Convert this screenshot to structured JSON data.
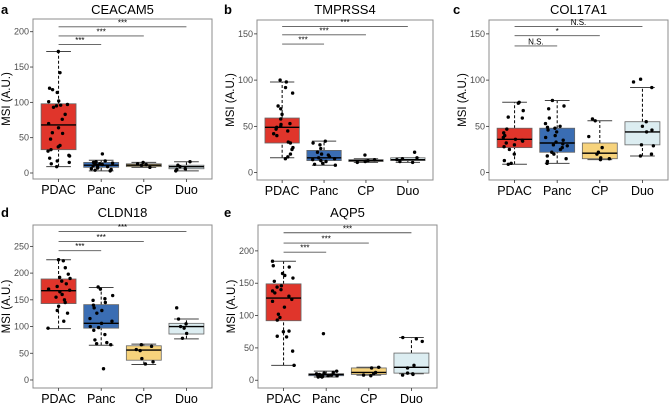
{
  "chart_data": [
    {
      "letter": "a",
      "type": "box",
      "title": "CEACAM5",
      "ylabel": "MSI (A.U.)",
      "categories": [
        "PDAC",
        "Panc",
        "CP",
        "Duo"
      ],
      "ylim": [
        -8.5,
        218
      ],
      "yticks": [
        0,
        50,
        100,
        150,
        200
      ],
      "boxes": [
        {
          "whisker_low": 9,
          "q1": 33,
          "median": 68,
          "q3": 98,
          "whisker_high": 172
        },
        {
          "whisker_low": 3,
          "q1": 8,
          "median": 11,
          "q3": 15,
          "whisker_high": 18
        },
        {
          "whisker_low": 8,
          "q1": 9,
          "median": 11,
          "q3": 13,
          "whisker_high": 15
        },
        {
          "whisker_low": 3,
          "q1": 6,
          "median": 9,
          "q3": 11,
          "whisker_high": 16
        }
      ],
      "points": [
        [
          172,
          142,
          120,
          118,
          114,
          102,
          101,
          97,
          96,
          95,
          93,
          83,
          76,
          70,
          64,
          57,
          56,
          48,
          39,
          37,
          33,
          31,
          25,
          24,
          21,
          17,
          15,
          13,
          9
        ],
        [
          27,
          17,
          16,
          15,
          14,
          13,
          13,
          12,
          11,
          10,
          9,
          8,
          7,
          6,
          5,
          4,
          3
        ],
        [
          15,
          13,
          12,
          11,
          8
        ],
        [
          16,
          11,
          9,
          6,
          5,
          3
        ]
      ],
      "significance": [
        {
          "from": "PDAC",
          "to": "Panc",
          "label": "***",
          "y": 182
        },
        {
          "from": "PDAC",
          "to": "CP",
          "label": "***",
          "y": 194
        },
        {
          "from": "PDAC",
          "to": "Duo",
          "label": "***",
          "y": 207
        }
      ]
    },
    {
      "letter": "b",
      "type": "box",
      "title": "TMPRSS4",
      "ylabel": "MSI (A.U.)",
      "categories": [
        "PDAC",
        "Panc",
        "CP",
        "Duo"
      ],
      "ylim": [
        -8,
        165
      ],
      "yticks": [
        0,
        50,
        100,
        150
      ],
      "boxes": [
        {
          "whisker_low": 16,
          "q1": 32,
          "median": 49,
          "q3": 59,
          "whisker_high": 98
        },
        {
          "whisker_low": 8,
          "q1": 13,
          "median": 16,
          "q3": 24,
          "whisker_high": 34
        },
        {
          "whisker_low": 11,
          "q1": 12,
          "median": 13,
          "q3": 14,
          "whisker_high": 15
        },
        {
          "whisker_low": 11,
          "q1": 13,
          "median": 14,
          "q3": 16,
          "whisker_high": 16
        }
      ],
      "points": [
        [
          100,
          98,
          92,
          86,
          72,
          69,
          63,
          58,
          53,
          52,
          50,
          49,
          47,
          45,
          42,
          40,
          33,
          32,
          27,
          25,
          20,
          17,
          15
        ],
        [
          34,
          32,
          30,
          26,
          22,
          20,
          19,
          17,
          16,
          15,
          14,
          13,
          12,
          10,
          9,
          8
        ],
        [
          19,
          14,
          13,
          12,
          11
        ],
        [
          22,
          16,
          15,
          14,
          12,
          11
        ]
      ],
      "significance": [
        {
          "from": "PDAC",
          "to": "Panc",
          "label": "***",
          "y": 139
        },
        {
          "from": "PDAC",
          "to": "CP",
          "label": "***",
          "y": 149
        },
        {
          "from": "PDAC",
          "to": "Duo",
          "label": "***",
          "y": 158
        }
      ]
    },
    {
      "letter": "c",
      "type": "box",
      "title": "COL17A1",
      "ylabel": "MSI (A.U.)",
      "categories": [
        "PDAC",
        "Panc",
        "CP",
        "Duo"
      ],
      "ylim": [
        -8,
        165
      ],
      "yticks": [
        0,
        50,
        100,
        150
      ],
      "boxes": [
        {
          "whisker_low": 9,
          "q1": 27,
          "median": 36,
          "q3": 48,
          "whisker_high": 76
        },
        {
          "whisker_low": 10,
          "q1": 22,
          "median": 32,
          "q3": 48,
          "whisker_high": 78
        },
        {
          "whisker_low": 14,
          "q1": 15,
          "median": 21,
          "q3": 32,
          "whisker_high": 56
        },
        {
          "whisker_low": 18,
          "q1": 30,
          "median": 44,
          "q3": 55,
          "whisker_high": 92
        }
      ],
      "points": [
        [
          76,
          75,
          67,
          60,
          59,
          47,
          43,
          40,
          38,
          36,
          35,
          34,
          32,
          30,
          28,
          25,
          20,
          13,
          10,
          9
        ],
        [
          78,
          72,
          69,
          59,
          53,
          50,
          49,
          48,
          46,
          44,
          40,
          38,
          35,
          33,
          31,
          30,
          29,
          27,
          25,
          22,
          20,
          18,
          15,
          12,
          10
        ],
        [
          58,
          56,
          39,
          27,
          22,
          20,
          16,
          15,
          14
        ],
        [
          101,
          98,
          92,
          55,
          50,
          46,
          44,
          30,
          29,
          20,
          18
        ]
      ],
      "significance": [
        {
          "from": "PDAC",
          "to": "Panc",
          "label": "N.S.",
          "y": 137
        },
        {
          "from": "PDAC",
          "to": "CP",
          "label": "*",
          "y": 148
        },
        {
          "from": "PDAC",
          "to": "Duo",
          "label": "N.S.",
          "y": 158
        }
      ]
    },
    {
      "letter": "d",
      "type": "box",
      "title": "CLDN18",
      "ylabel": "MSI (A.U.)",
      "categories": [
        "PDAC",
        "Panc",
        "CP",
        "Duo"
      ],
      "ylim": [
        -15,
        290
      ],
      "yticks": [
        0,
        50,
        100,
        150,
        200,
        250
      ],
      "boxes": [
        {
          "whisker_low": 96,
          "q1": 143,
          "median": 167,
          "q3": 189,
          "whisker_high": 225
        },
        {
          "whisker_low": 65,
          "q1": 97,
          "median": 106,
          "q3": 141,
          "whisker_high": 173
        },
        {
          "whisker_low": 29,
          "q1": 37,
          "median": 56,
          "q3": 64,
          "whisker_high": 67
        },
        {
          "whisker_low": 77,
          "q1": 86,
          "median": 100,
          "q3": 106,
          "whisker_high": 114
        }
      ],
      "points": [
        [
          225,
          223,
          210,
          198,
          192,
          190,
          185,
          180,
          175,
          170,
          168,
          165,
          160,
          155,
          150,
          145,
          138,
          130,
          125,
          110,
          97
        ],
        [
          174,
          170,
          158,
          152,
          149,
          145,
          140,
          135,
          130,
          125,
          115,
          110,
          106,
          100,
          98,
          93,
          85,
          75,
          70,
          68,
          66,
          21
        ],
        [
          66,
          63,
          57,
          55,
          40,
          34,
          30
        ],
        [
          135,
          114,
          105,
          100,
          97,
          87,
          78
        ]
      ],
      "significance": [
        {
          "from": "PDAC",
          "to": "Panc",
          "label": "***",
          "y": 242
        },
        {
          "from": "PDAC",
          "to": "CP",
          "label": "***",
          "y": 259
        },
        {
          "from": "PDAC",
          "to": "Duo",
          "label": "***",
          "y": 278
        }
      ]
    },
    {
      "letter": "e",
      "type": "box",
      "title": "AQP5",
      "ylabel": "MSI (A.U.)",
      "categories": [
        "PDAC",
        "Panc",
        "CP",
        "Duo"
      ],
      "ylim": [
        -12,
        240
      ],
      "yticks": [
        0,
        50,
        100,
        150,
        200
      ],
      "boxes": [
        {
          "whisker_low": 23,
          "q1": 92,
          "median": 127,
          "q3": 149,
          "whisker_high": 184
        },
        {
          "whisker_low": 5,
          "q1": 7,
          "median": 9,
          "q3": 10,
          "whisker_high": 14
        },
        {
          "whisker_low": 8,
          "q1": 9,
          "median": 12,
          "q3": 19,
          "whisker_high": 20
        },
        {
          "whisker_low": 10,
          "q1": 11,
          "median": 20,
          "q3": 42,
          "whisker_high": 66
        }
      ],
      "points": [
        [
          184,
          177,
          175,
          165,
          162,
          158,
          153,
          146,
          144,
          140,
          138,
          135,
          130,
          125,
          122,
          113,
          102,
          97,
          93,
          76,
          75,
          68,
          67,
          45,
          23
        ],
        [
          72,
          14,
          12,
          11,
          10,
          9,
          8,
          8,
          7,
          7,
          6,
          6,
          5,
          5
        ],
        [
          20,
          19,
          12,
          10,
          8,
          7
        ],
        [
          66,
          64,
          60,
          23,
          19,
          11,
          10,
          9,
          8
        ]
      ],
      "significance": [
        {
          "from": "PDAC",
          "to": "Panc",
          "label": "***",
          "y": 198
        },
        {
          "from": "PDAC",
          "to": "CP",
          "label": "***",
          "y": 212
        },
        {
          "from": "PDAC",
          "to": "Duo",
          "label": "***",
          "y": 228
        }
      ]
    }
  ],
  "colors": {
    "PDAC": "#e0352b",
    "Panc": "#3a6db3",
    "CP": "#f7d37c",
    "Duo": "#dcedf1",
    "frame": "#8c8c8c"
  }
}
